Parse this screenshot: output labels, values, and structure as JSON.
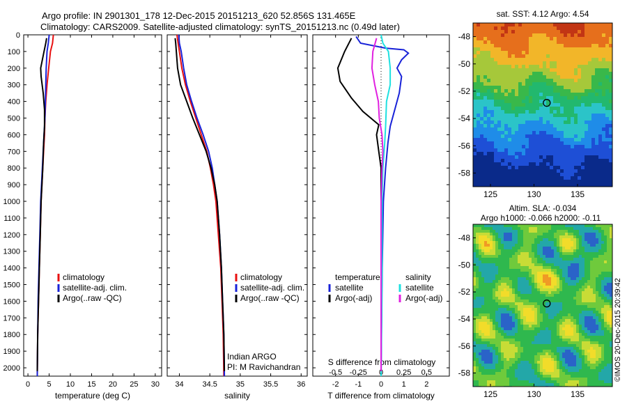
{
  "header": {
    "line1": "Argo profile: IN 2901301_178 12-Dec-2015 20151213_620 52.856S 131.465E",
    "line2": "Climatology: CARS2009. Satellite-adjusted climatology: synTS_20151213.nc (0.49d later)"
  },
  "colors": {
    "climatology": "#e81010",
    "satellite": "#1822d8",
    "argo": "#000000",
    "satellite_s": "#1ee0e0",
    "argo_s": "#e020e0"
  },
  "depth_ticks": [
    0,
    100,
    200,
    300,
    400,
    500,
    600,
    700,
    800,
    900,
    1000,
    1100,
    1200,
    1300,
    1400,
    1500,
    1600,
    1700,
    1800,
    1900,
    2000
  ],
  "chart_data": [
    {
      "type": "line",
      "xlabel": "temperature (deg C)",
      "xlim": [
        -1,
        31.5
      ],
      "ylim": [
        0,
        2050
      ],
      "xticks": [
        "0",
        "5",
        "10",
        "15",
        "20",
        "25",
        "30"
      ],
      "xtick_values": [
        0,
        5,
        10,
        15,
        20,
        25,
        30
      ],
      "legend": [
        "climatology",
        "satellite-adj. clim.",
        "Argo(..raw -QC)"
      ],
      "series": [
        {
          "name": "climatology",
          "color": "#e81010",
          "points": [
            [
              6.0,
              0
            ],
            [
              5.8,
              50
            ],
            [
              5.3,
              100
            ],
            [
              4.9,
              200
            ],
            [
              4.5,
              300
            ],
            [
              4.2,
              400
            ],
            [
              4.0,
              500
            ],
            [
              3.9,
              600
            ],
            [
              3.7,
              700
            ],
            [
              3.5,
              800
            ],
            [
              3.3,
              900
            ],
            [
              3.1,
              1000
            ],
            [
              2.9,
              1200
            ],
            [
              2.7,
              1400
            ],
            [
              2.5,
              1600
            ],
            [
              2.3,
              1800
            ],
            [
              2.2,
              2050
            ]
          ]
        },
        {
          "name": "satellite-adj. clim.",
          "color": "#1822d8",
          "points": [
            [
              5.0,
              0
            ],
            [
              4.8,
              50
            ],
            [
              4.5,
              100
            ],
            [
              4.3,
              200
            ],
            [
              4.2,
              300
            ],
            [
              4.1,
              400
            ],
            [
              4.0,
              500
            ],
            [
              3.8,
              600
            ],
            [
              3.6,
              700
            ],
            [
              3.4,
              800
            ],
            [
              3.2,
              900
            ],
            [
              3.0,
              1000
            ],
            [
              2.8,
              1200
            ],
            [
              2.6,
              1400
            ],
            [
              2.4,
              1600
            ],
            [
              2.3,
              1800
            ],
            [
              2.2,
              2050
            ]
          ]
        },
        {
          "name": "Argo(..raw -QC)",
          "color": "#000000",
          "points": [
            [
              4.4,
              20
            ],
            [
              4.2,
              50
            ],
            [
              3.8,
              100
            ],
            [
              3.0,
              200
            ],
            [
              3.1,
              250
            ],
            [
              3.6,
              350
            ],
            [
              3.9,
              450
            ],
            [
              3.9,
              550
            ],
            [
              3.7,
              650
            ],
            [
              3.5,
              800
            ],
            [
              3.3,
              900
            ],
            [
              3.1,
              1000
            ],
            [
              2.9,
              1200
            ],
            [
              2.7,
              1400
            ],
            [
              2.5,
              1600
            ],
            [
              2.3,
              1800
            ],
            [
              2.2,
              2020
            ]
          ]
        }
      ]
    },
    {
      "type": "line",
      "xlabel": "salinity",
      "xlim": [
        33.8,
        36.1
      ],
      "ylim": [
        0,
        2050
      ],
      "xticks": [
        "34",
        "34.5",
        "35",
        "35.5",
        "36"
      ],
      "xtick_values": [
        34,
        34.5,
        35,
        35.5,
        36
      ],
      "legend": [
        "climatology",
        "satellite-adj. clim.",
        "Argo(..raw -QC)"
      ],
      "annotation": [
        "Indian ARGO",
        "PI: M Ravichandran"
      ],
      "series": [
        {
          "name": "climatology",
          "color": "#e81010",
          "points": [
            [
              33.96,
              0
            ],
            [
              33.98,
              50
            ],
            [
              34.0,
              100
            ],
            [
              34.04,
              200
            ],
            [
              34.1,
              300
            ],
            [
              34.18,
              400
            ],
            [
              34.27,
              500
            ],
            [
              34.36,
              600
            ],
            [
              34.45,
              700
            ],
            [
              34.51,
              800
            ],
            [
              34.56,
              900
            ],
            [
              34.6,
              1000
            ],
            [
              34.64,
              1200
            ],
            [
              34.68,
              1400
            ],
            [
              34.7,
              1600
            ],
            [
              34.72,
              1800
            ],
            [
              34.73,
              2050
            ]
          ]
        },
        {
          "name": "satellite-adj. clim.",
          "color": "#1822d8",
          "points": [
            [
              33.99,
              0
            ],
            [
              34.0,
              50
            ],
            [
              34.03,
              100
            ],
            [
              34.07,
              200
            ],
            [
              34.12,
              300
            ],
            [
              34.2,
              400
            ],
            [
              34.29,
              500
            ],
            [
              34.39,
              600
            ],
            [
              34.48,
              700
            ],
            [
              34.54,
              800
            ],
            [
              34.58,
              900
            ],
            [
              34.62,
              1000
            ],
            [
              34.66,
              1200
            ],
            [
              34.69,
              1400
            ],
            [
              34.71,
              1600
            ],
            [
              34.73,
              1800
            ],
            [
              34.74,
              2050
            ]
          ]
        },
        {
          "name": "Argo(..raw -QC)",
          "color": "#000000",
          "points": [
            [
              33.93,
              20
            ],
            [
              33.94,
              50
            ],
            [
              33.95,
              100
            ],
            [
              33.97,
              200
            ],
            [
              34.02,
              300
            ],
            [
              34.12,
              400
            ],
            [
              34.22,
              500
            ],
            [
              34.33,
              600
            ],
            [
              34.44,
              700
            ],
            [
              34.52,
              800
            ],
            [
              34.58,
              900
            ],
            [
              34.62,
              1000
            ],
            [
              34.66,
              1200
            ],
            [
              34.69,
              1400
            ],
            [
              34.71,
              1600
            ],
            [
              34.73,
              1800
            ],
            [
              34.74,
              2020
            ]
          ]
        }
      ]
    },
    {
      "type": "line",
      "xlabel": "T difference from climatology",
      "xlabel_top": "S difference from climatology",
      "xlim": [
        -3,
        3
      ],
      "ylim": [
        0,
        2050
      ],
      "xticks": [
        "-2",
        "-1",
        "0",
        "1",
        "2"
      ],
      "xtick_values": [
        -2,
        -1,
        0,
        1,
        2
      ],
      "sticks": [
        "-0.5",
        "-0.25",
        "0",
        "0.25",
        "0.5"
      ],
      "stick_values": [
        -0.5,
        -0.25,
        0,
        0.25,
        0.5
      ],
      "s_scale": 4,
      "legend_t": {
        "title": "temperature",
        "items": [
          "satellite",
          "Argo(-adj)"
        ]
      },
      "legend_s": {
        "title": "salinity",
        "items": [
          "satellite",
          "Argo(-adj)"
        ]
      },
      "series": [
        {
          "name": "satellite",
          "group": "temperature",
          "color": "#1822d8",
          "points": [
            [
              -1.1,
              10
            ],
            [
              -0.9,
              50
            ],
            [
              0.2,
              80
            ],
            [
              1.0,
              90
            ],
            [
              1.2,
              110
            ],
            [
              0.9,
              150
            ],
            [
              0.7,
              200
            ],
            [
              0.9,
              250
            ],
            [
              0.8,
              350
            ],
            [
              0.6,
              450
            ],
            [
              0.4,
              550
            ],
            [
              0.3,
              650
            ],
            [
              0.2,
              800
            ],
            [
              0.1,
              1000
            ],
            [
              0.05,
              1400
            ],
            [
              0.0,
              2050
            ]
          ]
        },
        {
          "name": "Argo(-adj)",
          "group": "temperature",
          "color": "#000000",
          "points": [
            [
              -1.3,
              20
            ],
            [
              -1.6,
              100
            ],
            [
              -1.9,
              200
            ],
            [
              -1.8,
              280
            ],
            [
              -1.3,
              380
            ],
            [
              -0.8,
              460
            ],
            [
              -0.1,
              540
            ],
            [
              -0.2,
              600
            ],
            [
              -0.1,
              700
            ],
            [
              0.0,
              800
            ],
            [
              0.0,
              1000
            ],
            [
              0.0,
              1400
            ],
            [
              0.0,
              1800
            ],
            [
              0.0,
              2020
            ]
          ]
        },
        {
          "name": "satellite",
          "group": "salinity",
          "color": "#1ee0e0",
          "points": [
            [
              0.0,
              0
            ],
            [
              0.02,
              50
            ],
            [
              0.08,
              100
            ],
            [
              0.1,
              200
            ],
            [
              0.1,
              300
            ],
            [
              0.06,
              400
            ],
            [
              0.05,
              550
            ],
            [
              0.04,
              650
            ],
            [
              0.02,
              800
            ],
            [
              0.01,
              1000
            ],
            [
              0.01,
              1400
            ],
            [
              0.0,
              2050
            ]
          ]
        },
        {
          "name": "Argo(-adj)",
          "group": "salinity",
          "color": "#e020e0",
          "points": [
            [
              -0.05,
              20
            ],
            [
              -0.09,
              100
            ],
            [
              -0.1,
              200
            ],
            [
              -0.07,
              300
            ],
            [
              -0.03,
              400
            ],
            [
              -0.02,
              500
            ],
            [
              0.01,
              600
            ],
            [
              0.02,
              700
            ],
            [
              0.01,
              800
            ],
            [
              0.0,
              1000
            ],
            [
              0.0,
              1400
            ],
            [
              0.0,
              2020
            ]
          ]
        }
      ]
    },
    {
      "type": "heatmap",
      "title": "sat. SST: 4.12 Argo: 4.54",
      "xlim": [
        123,
        139
      ],
      "ylim": [
        -59,
        -47
      ],
      "xticks": [
        "125",
        "130",
        "135"
      ],
      "xtick_values": [
        125,
        130,
        135
      ],
      "yticks": [
        "-48",
        "-50",
        "-52",
        "-54",
        "-56",
        "-58"
      ],
      "ytick_values": [
        -48,
        -50,
        -52,
        -54,
        -56,
        -58
      ],
      "marker": {
        "lon": 131.465,
        "lat": -52.856
      }
    },
    {
      "type": "heatmap",
      "title": "Altim. SLA: -0.034",
      "subtitle": "Argo h1000: -0.066 h2000: -0.11",
      "xlim": [
        123,
        139
      ],
      "ylim": [
        -59,
        -47
      ],
      "xticks": [
        "125",
        "130",
        "135"
      ],
      "xtick_values": [
        125,
        130,
        135
      ],
      "yticks": [
        "-48",
        "-50",
        "-52",
        "-54",
        "-56",
        "-58"
      ],
      "ytick_values": [
        -48,
        -50,
        -52,
        -54,
        -56,
        -58
      ],
      "marker": {
        "lon": 131.465,
        "lat": -52.856
      }
    }
  ],
  "footer": {
    "credit": "©IMOS 20-Dec-2015 20:39:42"
  }
}
